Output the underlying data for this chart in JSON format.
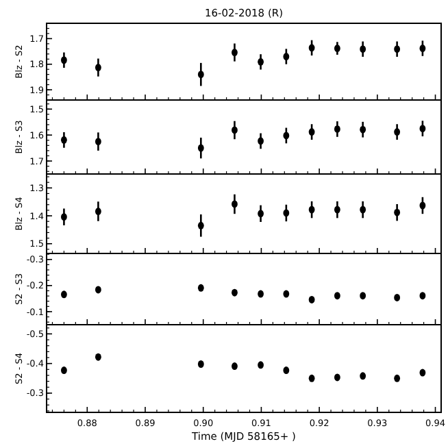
{
  "chart_data": [
    {
      "type": "scatter",
      "title": "16-02-2018  (R)",
      "ylabel": "Blz - S2",
      "marker": "circle",
      "tick_labels": "y",
      "x": [
        0.876,
        0.8819,
        0.8996,
        0.9054,
        0.9099,
        0.9143,
        0.9187,
        0.9231,
        0.9275,
        0.9334,
        0.9378
      ],
      "xlim": [
        0.873,
        0.941
      ],
      "xticks": [
        0.88,
        0.89,
        0.9,
        0.91,
        0.92,
        0.93,
        0.94
      ],
      "ylim": [
        1.94,
        1.64
      ],
      "yticks": [
        1.7,
        1.8,
        1.9
      ],
      "series": [
        {
          "color": "#000000",
          "values": [
            1.784,
            1.813,
            1.84,
            1.754,
            1.791,
            1.77,
            1.736,
            1.738,
            1.741,
            1.741,
            1.738
          ],
          "errors": [
            0.03,
            0.035,
            0.045,
            0.035,
            0.03,
            0.03,
            0.03,
            0.025,
            0.03,
            0.03,
            0.03
          ]
        }
      ]
    },
    {
      "type": "scatter",
      "ylabel": "Blz - S3",
      "marker": "circle",
      "tick_labels": "y",
      "x": [
        0.876,
        0.8819,
        0.8996,
        0.9054,
        0.9099,
        0.9143,
        0.9187,
        0.9231,
        0.9275,
        0.9334,
        0.9378
      ],
      "xlim": [
        0.873,
        0.941
      ],
      "xticks": [
        0.88,
        0.89,
        0.9,
        0.91,
        0.92,
        0.93,
        0.94
      ],
      "ylim": [
        1.75,
        1.465
      ],
      "yticks": [
        1.5,
        1.6,
        1.7
      ],
      "series": [
        {
          "color": "#000000",
          "values": [
            1.619,
            1.625,
            1.65,
            1.581,
            1.623,
            1.602,
            1.588,
            1.577,
            1.579,
            1.588,
            1.575
          ],
          "errors": [
            0.03,
            0.035,
            0.04,
            0.035,
            0.03,
            0.03,
            0.03,
            0.03,
            0.03,
            0.03,
            0.03
          ]
        }
      ]
    },
    {
      "type": "scatter",
      "ylabel": "Blz - S4",
      "marker": "circle",
      "tick_labels": "y",
      "x": [
        0.876,
        0.8819,
        0.8996,
        0.9054,
        0.9099,
        0.9143,
        0.9187,
        0.9231,
        0.9275,
        0.9334,
        0.9378
      ],
      "xlim": [
        0.873,
        0.941
      ],
      "xticks": [
        0.88,
        0.89,
        0.9,
        0.91,
        0.92,
        0.93,
        0.94
      ],
      "ylim": [
        1.535,
        1.25
      ],
      "yticks": [
        1.3,
        1.4,
        1.5
      ],
      "series": [
        {
          "color": "#000000",
          "values": [
            1.404,
            1.384,
            1.435,
            1.358,
            1.392,
            1.39,
            1.378,
            1.378,
            1.378,
            1.388,
            1.363
          ],
          "errors": [
            0.03,
            0.035,
            0.04,
            0.035,
            0.03,
            0.03,
            0.03,
            0.03,
            0.03,
            0.03,
            0.03
          ]
        }
      ]
    },
    {
      "type": "scatter",
      "ylabel": "S2 - S3",
      "marker": "circle",
      "tick_labels": "y",
      "x": [
        0.876,
        0.8819,
        0.8996,
        0.9054,
        0.9099,
        0.9143,
        0.9187,
        0.9231,
        0.9275,
        0.9334,
        0.9378
      ],
      "xlim": [
        0.873,
        0.941
      ],
      "xticks": [
        0.88,
        0.89,
        0.9,
        0.91,
        0.92,
        0.93,
        0.94
      ],
      "ylim": [
        -0.05,
        -0.323
      ],
      "yticks": [
        -0.3,
        -0.2,
        -0.1
      ],
      "series": [
        {
          "color": "#000000",
          "values": [
            -0.166,
            -0.184,
            -0.191,
            -0.173,
            -0.168,
            -0.168,
            -0.146,
            -0.161,
            -0.161,
            -0.154,
            -0.161
          ],
          "errors": [
            0.006,
            0.006,
            0.006,
            0.006,
            0.006,
            0.006,
            0.006,
            0.006,
            0.006,
            0.006,
            0.006
          ]
        }
      ]
    },
    {
      "type": "scatter",
      "ylabel": "S2 - S4",
      "xlabel": "Time (MJD 58165+ )",
      "marker": "circle",
      "x": [
        0.876,
        0.8819,
        0.8996,
        0.9054,
        0.9099,
        0.9143,
        0.9187,
        0.9231,
        0.9275,
        0.9334,
        0.9378
      ],
      "xlim": [
        0.873,
        0.941
      ],
      "xticks": [
        0.88,
        0.89,
        {
          "value": 0.9,
          "label": "0.90"
        },
        0.91,
        0.92,
        0.93,
        0.94
      ],
      "ylim": [
        -0.235,
        -0.531
      ],
      "yticks": [
        -0.5,
        -0.4,
        -0.3
      ],
      "series": [
        {
          "color": "#000000",
          "values": [
            -0.377,
            -0.422,
            -0.398,
            -0.391,
            -0.395,
            -0.377,
            -0.35,
            -0.353,
            -0.358,
            -0.35,
            -0.369
          ],
          "errors": [
            0.008,
            0.008,
            0.008,
            0.008,
            0.008,
            0.008,
            0.008,
            0.008,
            0.008,
            0.008,
            0.008
          ]
        }
      ]
    }
  ]
}
